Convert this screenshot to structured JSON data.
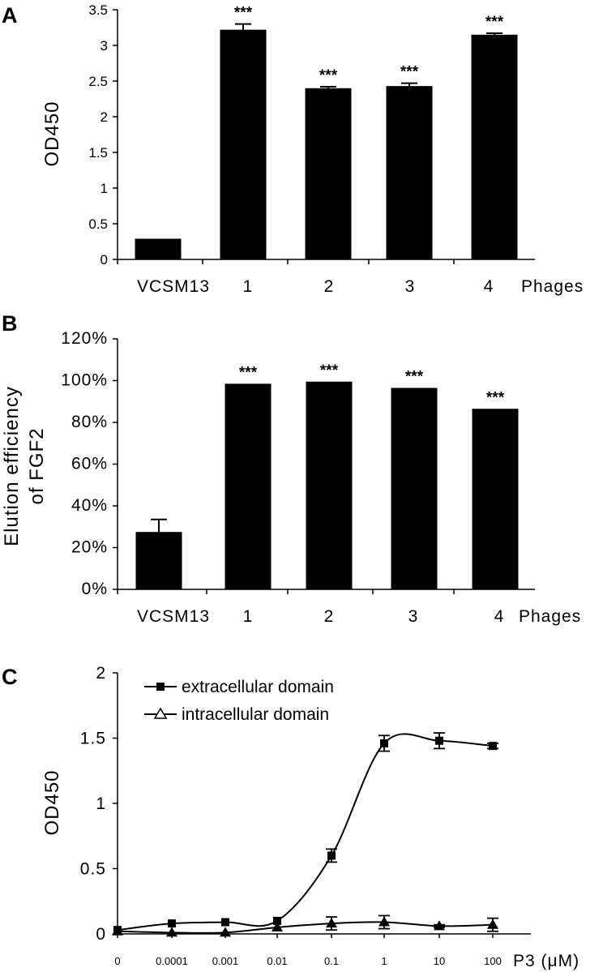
{
  "chart_data": [
    {
      "panel": "A",
      "type": "bar",
      "categories": [
        "VCSM13",
        "1",
        "2",
        "3",
        "4"
      ],
      "values": [
        0.29,
        3.22,
        2.4,
        2.43,
        3.15
      ],
      "errors": [
        0,
        0.08,
        0.02,
        0.04,
        0.02
      ],
      "annotations": [
        "",
        "***",
        "***",
        "***",
        "***"
      ],
      "xlabel": "Phages",
      "ylabel": "OD450",
      "ylim": [
        0,
        3.5
      ],
      "yticks": [
        "0",
        "0.5",
        "1",
        "1.5",
        "2",
        "2.5",
        "3",
        "3.5"
      ],
      "bar_color": "#000000"
    },
    {
      "panel": "B",
      "type": "bar",
      "categories": [
        "VCSM13",
        "1",
        "2",
        "3",
        "4"
      ],
      "values": [
        27.5,
        98.5,
        99.5,
        96.5,
        86.5
      ],
      "errors": [
        6,
        0,
        0,
        0,
        0
      ],
      "annotations": [
        "",
        "***",
        "***",
        "***",
        "***"
      ],
      "xlabel": "Phages",
      "ylabel_lines": [
        "Elution efficiency",
        "of FGF2"
      ],
      "ylim": [
        0,
        120
      ],
      "yticks": [
        "0%",
        "20%",
        "40%",
        "60%",
        "80%",
        "100%",
        "120%"
      ],
      "bar_color": "#000000"
    },
    {
      "panel": "C",
      "type": "line",
      "x": [
        "0",
        "0.0001",
        "0.001",
        "0.01",
        "0.1",
        "1",
        "10",
        "100"
      ],
      "series": [
        {
          "name": "extracellular domain",
          "marker": "square",
          "values": [
            0.03,
            0.08,
            0.09,
            0.1,
            0.6,
            1.46,
            1.48,
            1.44
          ],
          "errors": [
            0,
            0,
            0,
            0,
            0.05,
            0.06,
            0.06,
            0.02
          ]
        },
        {
          "name": "intracellular domain",
          "marker": "triangle",
          "values": [
            0.02,
            0.01,
            0.01,
            0.05,
            0.08,
            0.09,
            0.06,
            0.07
          ],
          "errors": [
            0,
            0,
            0,
            0,
            0.05,
            0.05,
            0.01,
            0.05
          ]
        }
      ],
      "xlabel": "P3 (μM)",
      "ylabel": "OD450",
      "ylim": [
        0,
        2
      ],
      "yticks": [
        "0",
        "0.5",
        "1",
        "1.5",
        "2"
      ],
      "legend_position": "top-left"
    }
  ]
}
